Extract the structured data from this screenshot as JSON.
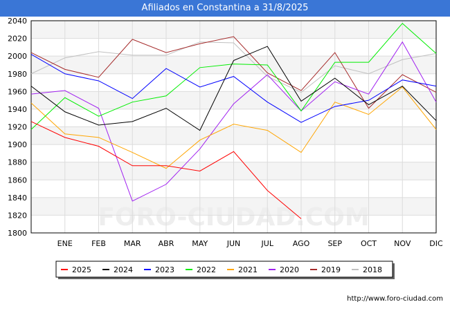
{
  "title": "Afiliados en Constantina a 31/8/2025",
  "footer_url": "http://www.foro-ciudad.com",
  "watermark": "FORO-CIUDAD.COM",
  "chart_data": {
    "type": "line",
    "title": "Afiliados en Constantina a 31/8/2025",
    "x_labels": [
      "ENE",
      "FEB",
      "MAR",
      "ABR",
      "MAY",
      "JUN",
      "JUL",
      "AGO",
      "SEP",
      "OCT",
      "NOV",
      "DIC"
    ],
    "x_note": "first point of each series is previous December (unlabeled)",
    "ylim": [
      1800,
      2040
    ],
    "y_ticks": [
      1800,
      1820,
      1840,
      1860,
      1880,
      1900,
      1920,
      1940,
      1960,
      1980,
      2000,
      2020,
      2040
    ],
    "grid": true,
    "legend_position": "bottom",
    "series": [
      {
        "name": "2025",
        "color": "#ff0000",
        "values": [
          1926,
          1908,
          1898,
          1876,
          1876,
          1870,
          1892,
          1848,
          1816
        ]
      },
      {
        "name": "2024",
        "color": "#000000",
        "values": [
          1966,
          1937,
          1922,
          1926,
          1941,
          1916,
          1995,
          2011,
          1949,
          1975,
          1945,
          1966,
          1927
        ]
      },
      {
        "name": "2023",
        "color": "#0000ff",
        "values": [
          2002,
          1980,
          1972,
          1952,
          1986,
          1965,
          1977,
          1948,
          1925,
          1943,
          1950,
          1973,
          1966
        ]
      },
      {
        "name": "2022",
        "color": "#00ee00",
        "values": [
          1917,
          1953,
          1932,
          1948,
          1955,
          1987,
          1991,
          1990,
          1938,
          1993,
          1993,
          2037,
          2003
        ]
      },
      {
        "name": "2021",
        "color": "#ffa500",
        "values": [
          1947,
          1912,
          1908,
          1891,
          1873,
          1905,
          1923,
          1916,
          1891,
          1948,
          1934,
          1965,
          1917
        ]
      },
      {
        "name": "2020",
        "color": "#a020f0",
        "values": [
          1957,
          1961,
          1941,
          1836,
          1855,
          1895,
          1946,
          1979,
          1938,
          1971,
          1957,
          2016,
          1948
        ]
      },
      {
        "name": "2019",
        "color": "#a52a2a",
        "values": [
          2004,
          1985,
          1976,
          2019,
          2004,
          2014,
          2022,
          1981,
          1961,
          2004,
          1941,
          1979,
          1959
        ]
      },
      {
        "name": "2018",
        "color": "#c0c0c0",
        "values": [
          1980,
          1998,
          2005,
          2001,
          2001,
          2016,
          2015,
          1977,
          1959,
          1989,
          1980,
          1996,
          2003
        ]
      }
    ]
  }
}
